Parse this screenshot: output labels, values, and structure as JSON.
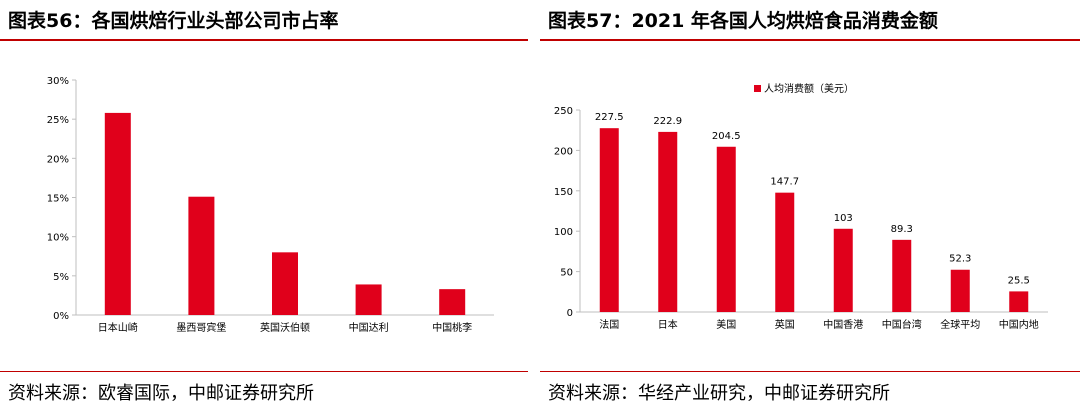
{
  "left": {
    "title": "图表56：各国烘焙行业头部公司市占率",
    "source": "资料来源：欧睿国际，中邮证券研究所"
  },
  "right": {
    "title": "图表57：2021 年各国人均烘焙食品消费金额",
    "source": "资料来源：华经产业研究，中邮证券研究所"
  },
  "colors": {
    "bar": "#e0001b",
    "rule": "#c00000",
    "axis": "#bfbfbf"
  },
  "chart_data": [
    {
      "type": "bar",
      "title": "",
      "categories": [
        "日本山崎",
        "墨西哥宾堡",
        "英国沃伯顿",
        "中国达利",
        "中国桃李"
      ],
      "values": [
        25.8,
        15.1,
        8.0,
        3.9,
        3.3
      ],
      "yticks": [
        "0%",
        "5%",
        "10%",
        "15%",
        "20%",
        "25%",
        "30%"
      ],
      "ylim": [
        0,
        30
      ],
      "xlabel": "",
      "ylabel": "",
      "legend": null
    },
    {
      "type": "bar",
      "title": "",
      "categories": [
        "法国",
        "日本",
        "美国",
        "英国",
        "中国香港",
        "中国台湾",
        "全球平均",
        "中国内地"
      ],
      "values": [
        227.5,
        222.9,
        204.5,
        147.7,
        103,
        89.3,
        52.3,
        25.5
      ],
      "value_labels": [
        "227.5",
        "222.9",
        "204.5",
        "147.7",
        "103",
        "89.3",
        "52.3",
        "25.5"
      ],
      "yticks": [
        "0",
        "50",
        "100",
        "150",
        "200",
        "250"
      ],
      "ylim": [
        0,
        250
      ],
      "legend": "人均消费额（美元）",
      "legend_position": "top-center",
      "xlabel": "",
      "ylabel": ""
    }
  ]
}
